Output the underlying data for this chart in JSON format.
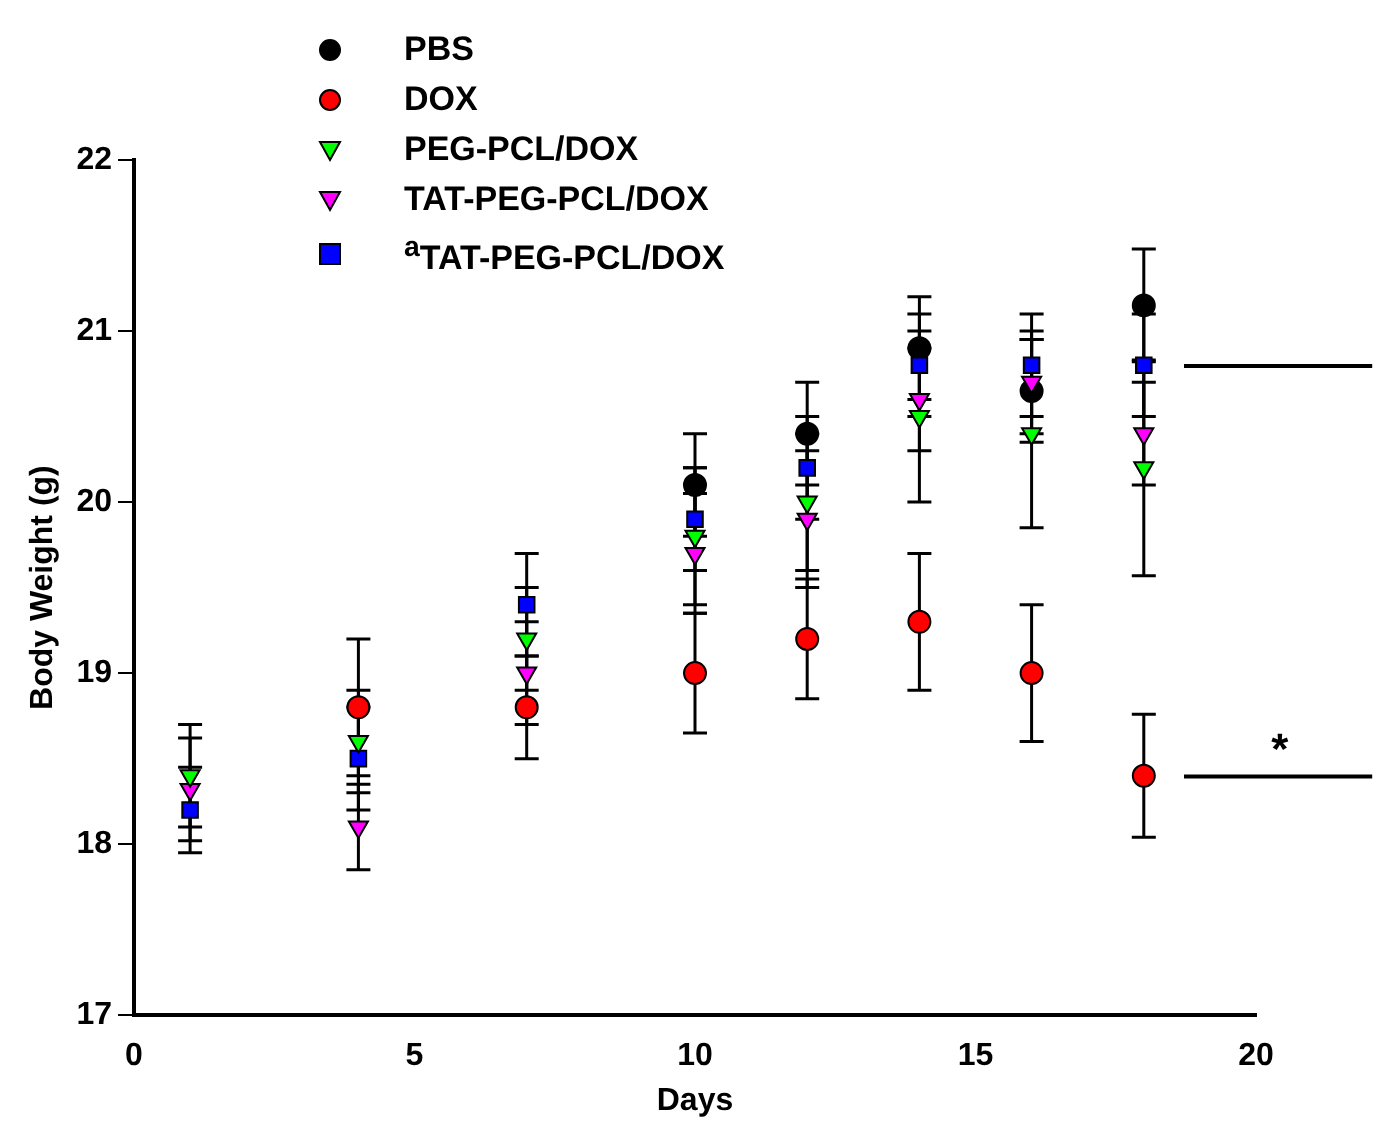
{
  "chart_data": {
    "type": "scatter",
    "xlabel": "Days",
    "ylabel": "Body Weight (g)",
    "x": [
      1,
      4,
      7,
      10,
      12,
      14,
      16,
      18
    ],
    "series": [
      {
        "name": "PBS",
        "color": "#000000",
        "marker": "circle",
        "values": [
          null,
          null,
          null,
          20.1,
          20.4,
          20.9,
          20.65,
          21.15
        ],
        "errors": [
          null,
          null,
          null,
          0.3,
          0.3,
          0.3,
          0.3,
          0.33
        ]
      },
      {
        "name": "DOX",
        "color": "#ff0000",
        "marker": "circle",
        "values": [
          null,
          18.8,
          18.8,
          19.0,
          19.2,
          19.3,
          19.0,
          18.4
        ],
        "errors": [
          null,
          0.4,
          0.3,
          0.35,
          0.35,
          0.4,
          0.4,
          0.36
        ]
      },
      {
        "name": "PEG-PCL/DOX",
        "color": "#00ff00",
        "marker": "triangle",
        "values": [
          18.4,
          18.6,
          19.2,
          19.8,
          20.0,
          20.5,
          20.4,
          20.2
        ],
        "errors": [
          0.3,
          0.3,
          0.3,
          0.4,
          0.4,
          0.5,
          0.55,
          0.63
        ]
      },
      {
        "name": "TAT-PEG-PCL/DOX",
        "color": "#ff00ff",
        "marker": "triangle",
        "values": [
          18.32,
          18.1,
          19.0,
          19.7,
          19.9,
          20.6,
          20.7,
          20.4
        ],
        "errors": [
          0.3,
          0.25,
          0.3,
          0.35,
          0.4,
          0.3,
          0.3,
          0.3
        ]
      },
      {
        "name": "$^{a}$TAT-PEG-PCL/DOX",
        "color": "#0000ff",
        "marker": "square",
        "values": [
          18.2,
          18.5,
          19.4,
          19.9,
          20.2,
          20.8,
          20.8,
          20.8
        ],
        "errors": [
          0.25,
          0.3,
          0.3,
          0.3,
          0.3,
          0.3,
          0.3,
          0.3
        ]
      }
    ],
    "xlim": [
      0,
      20
    ],
    "xticks": [
      0,
      5,
      10,
      15,
      20
    ],
    "ylim": [
      17,
      22
    ],
    "yticks": [
      17,
      18,
      19,
      20,
      21,
      22
    ],
    "grid": false,
    "legend": "top left",
    "annotations": [
      "*"
    ]
  }
}
